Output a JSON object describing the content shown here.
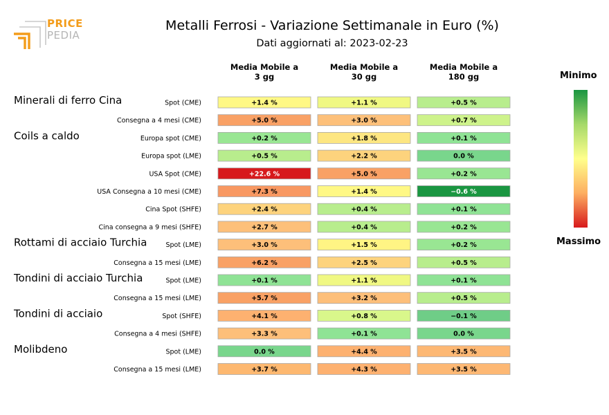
{
  "brand": {
    "line1": "PRICE",
    "line2": "PEDIA"
  },
  "header": {
    "title": "Metalli Ferrosi - Variazione Settimanale in Euro (%)",
    "subtitle": "Dati aggiornati al: 2023-02-23"
  },
  "legend": {
    "min_label": "Minimo",
    "max_label": "Massimo"
  },
  "colors": {
    "min": "#1a9641",
    "mid": "#ffff8c",
    "max": "#d7191c",
    "brand_orange": "#f39c1a",
    "brand_grey": "#b5b5b5"
  },
  "chart_data": {
    "type": "table",
    "title": "Metalli Ferrosi - Variazione Settimanale in Euro (%)",
    "columns": [
      "Media Mobile a\n3 gg",
      "Media Mobile a\n30 gg",
      "Media Mobile a\n180 gg"
    ],
    "groups": [
      {
        "name": "Minerali di ferro Cina",
        "rows": [
          {
            "label": "Spot (CME)",
            "values": [
              1.4,
              1.1,
              0.5
            ],
            "texts": [
              "+1.4 %",
              "+1.1 %",
              "+0.5 %"
            ]
          },
          {
            "label": "Consegna a 4 mesi (CME)",
            "values": [
              5.0,
              3.0,
              0.7
            ],
            "texts": [
              "+5.0 %",
              "+3.0 %",
              "+0.7 %"
            ]
          }
        ]
      },
      {
        "name": "Coils a caldo",
        "rows": [
          {
            "label": "Europa spot (CME)",
            "values": [
              0.2,
              1.8,
              0.1
            ],
            "texts": [
              "+0.2 %",
              "+1.8 %",
              "+0.1 %"
            ]
          },
          {
            "label": "Europa spot (LME)",
            "values": [
              0.5,
              2.2,
              0.0
            ],
            "texts": [
              "+0.5 %",
              "+2.2 %",
              "0.0 %"
            ]
          },
          {
            "label": "USA Spot (CME)",
            "values": [
              22.6,
              5.0,
              0.2
            ],
            "texts": [
              "+22.6 %",
              "+5.0 %",
              "+0.2 %"
            ]
          },
          {
            "label": "USA Consegna a 10 mesi (CME)",
            "values": [
              7.3,
              1.4,
              -0.6
            ],
            "texts": [
              "+7.3 %",
              "+1.4 %",
              "−0.6 %"
            ]
          },
          {
            "label": "Cina Spot (SHFE)",
            "values": [
              2.4,
              0.4,
              0.1
            ],
            "texts": [
              "+2.4 %",
              "+0.4 %",
              "+0.1 %"
            ]
          },
          {
            "label": "Cina consegna a 9 mesi (SHFE)",
            "values": [
              2.7,
              0.4,
              0.2
            ],
            "texts": [
              "+2.7 %",
              "+0.4 %",
              "+0.2 %"
            ]
          }
        ]
      },
      {
        "name": "Rottami di acciaio Turchia",
        "rows": [
          {
            "label": "Spot (LME)",
            "values": [
              3.0,
              1.5,
              0.2
            ],
            "texts": [
              "+3.0 %",
              "+1.5 %",
              "+0.2 %"
            ]
          },
          {
            "label": "Consegna a 15 mesi (LME)",
            "values": [
              6.2,
              2.5,
              0.5
            ],
            "texts": [
              "+6.2 %",
              "+2.5 %",
              "+0.5 %"
            ]
          }
        ]
      },
      {
        "name": "Tondini di acciaio Turchia",
        "rows": [
          {
            "label": "Spot (LME)",
            "values": [
              0.1,
              1.1,
              0.1
            ],
            "texts": [
              "+0.1 %",
              "+1.1 %",
              "+0.1 %"
            ]
          },
          {
            "label": "Consegna a 15 mesi (LME)",
            "values": [
              5.7,
              3.2,
              0.5
            ],
            "texts": [
              "+5.7 %",
              "+3.2 %",
              "+0.5 %"
            ]
          }
        ]
      },
      {
        "name": "Tondini di acciaio",
        "rows": [
          {
            "label": "Spot (SHFE)",
            "values": [
              4.1,
              0.8,
              -0.1
            ],
            "texts": [
              "+4.1 %",
              "+0.8 %",
              "−0.1 %"
            ]
          },
          {
            "label": "Consegna a 4 mesi (SHFE)",
            "values": [
              3.3,
              0.1,
              0.0
            ],
            "texts": [
              "+3.3 %",
              "+0.1 %",
              "0.0 %"
            ]
          }
        ]
      },
      {
        "name": "Molibdeno",
        "rows": [
          {
            "label": "Spot (LME)",
            "values": [
              0.0,
              4.4,
              3.5
            ],
            "texts": [
              "0.0 %",
              "+4.4 %",
              "+3.5 %"
            ]
          },
          {
            "label": "Consegna a 15 mesi (LME)",
            "values": [
              3.7,
              4.3,
              3.5
            ],
            "texts": [
              "+3.7 %",
              "+4.3 %",
              "+3.5 %"
            ]
          }
        ]
      }
    ],
    "cell_colors": [
      [
        "#fff885",
        "#f0f883",
        "#b8ed8d"
      ],
      [
        "#f9a165",
        "#fdc07a",
        "#cef38b"
      ],
      [
        "#99e693",
        "#fde682",
        "#8fe395"
      ],
      [
        "#b8ed8d",
        "#fdd37d",
        "#79d68c"
      ],
      [
        "#d7191c",
        "#f9a165",
        "#99e693"
      ],
      [
        "#f89862",
        "#fff885",
        "#1a9641"
      ],
      [
        "#fdd37d",
        "#b8ed8d",
        "#8fe395"
      ],
      [
        "#fdc07a",
        "#b8ed8d",
        "#99e693"
      ],
      [
        "#fdbf7a",
        "#fff484",
        "#99e693"
      ],
      [
        "#f9a165",
        "#fdd37d",
        "#b8ed8d"
      ],
      [
        "#8fe395",
        "#f0f883",
        "#8fe395"
      ],
      [
        "#f9a165",
        "#fdbf7a",
        "#b8ed8d"
      ],
      [
        "#fdb170",
        "#d9f78b",
        "#6fcd87"
      ],
      [
        "#fdbf7a",
        "#8fe395",
        "#79d68c"
      ],
      [
        "#79d68c",
        "#fdb170",
        "#fdb874"
      ],
      [
        "#fdb870",
        "#fdb170",
        "#fdb874"
      ]
    ]
  }
}
